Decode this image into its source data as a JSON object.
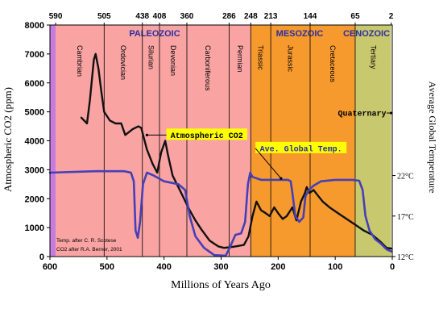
{
  "chart_data": {
    "type": "line",
    "xlabel": "Millions of Years Ago",
    "ylabel_left": "Atmospheric CO2 (ppm)",
    "ylabel_right": "Average Global Temperature",
    "x_reversed": true,
    "xlim": [
      600,
      0
    ],
    "ylim": [
      0,
      8000
    ],
    "x_ticks": [
      "600",
      "500",
      "400",
      "300",
      "200",
      "100",
      "0"
    ],
    "x_tick_values": [
      600,
      500,
      400,
      300,
      200,
      100,
      0
    ],
    "y_ticks": [
      "0",
      "1000",
      "2000",
      "3000",
      "4000",
      "5000",
      "6000",
      "7000",
      "8000"
    ],
    "y_tick_values": [
      0,
      1000,
      2000,
      3000,
      4000,
      5000,
      6000,
      7000,
      8000
    ],
    "right_ticks": [
      {
        "label": "22°C",
        "y": 2800
      },
      {
        "label": "17°C",
        "y": 1400
      },
      {
        "label": "12°C",
        "y": 0
      }
    ],
    "top_ticks": [
      "590",
      "505",
      "438",
      "408",
      "360",
      "286",
      "248",
      "213",
      "144",
      "65",
      "2"
    ],
    "top_tick_values": [
      590,
      505,
      438,
      408,
      360,
      286,
      248,
      213,
      144,
      65,
      2
    ],
    "eras": [
      {
        "name": "PALEOZOIC",
        "start": 590,
        "end": 248,
        "color": "#f9a3a3",
        "text_color": "#2a2fa0"
      },
      {
        "name": "MESOZOIC",
        "start": 248,
        "end": 65,
        "color": "#f79a2e",
        "text_color": "#2a2fa0"
      },
      {
        "name": "CENOZOIC",
        "start": 65,
        "end": 2,
        "color": "#c8c86e",
        "text_color": "#2a2fa0"
      }
    ],
    "pre_band": {
      "start": 600,
      "end": 590,
      "color": "#c77ae0"
    },
    "periods": [
      {
        "name": "Cambrian",
        "start": 590,
        "end": 505
      },
      {
        "name": "Ordovician",
        "start": 505,
        "end": 438
      },
      {
        "name": "Silurian",
        "start": 438,
        "end": 408
      },
      {
        "name": "Devonian",
        "start": 408,
        "end": 360
      },
      {
        "name": "Carboniferous",
        "start": 360,
        "end": 286
      },
      {
        "name": "Permian",
        "start": 286,
        "end": 248
      },
      {
        "name": "Triassic",
        "start": 248,
        "end": 213
      },
      {
        "name": "Jurassic",
        "start": 213,
        "end": 144
      },
      {
        "name": "Cretaceous",
        "start": 144,
        "end": 65
      },
      {
        "name": "Tertiary",
        "start": 65,
        "end": 2
      }
    ],
    "series": [
      {
        "name": "Atmospheric CO2",
        "color": "#111111",
        "points": [
          [
            545,
            4800
          ],
          [
            535,
            4600
          ],
          [
            530,
            5400
          ],
          [
            523,
            6800
          ],
          [
            520,
            7000
          ],
          [
            515,
            6500
          ],
          [
            510,
            5700
          ],
          [
            505,
            5000
          ],
          [
            495,
            4700
          ],
          [
            485,
            4600
          ],
          [
            475,
            4600
          ],
          [
            468,
            4200
          ],
          [
            455,
            4400
          ],
          [
            445,
            4500
          ],
          [
            440,
            4450
          ],
          [
            430,
            3700
          ],
          [
            420,
            3200
          ],
          [
            412,
            2900
          ],
          [
            405,
            3600
          ],
          [
            398,
            4000
          ],
          [
            393,
            3500
          ],
          [
            385,
            2800
          ],
          [
            375,
            2400
          ],
          [
            365,
            2000
          ],
          [
            355,
            1600
          ],
          [
            345,
            1250
          ],
          [
            335,
            950
          ],
          [
            320,
            550
          ],
          [
            305,
            350
          ],
          [
            295,
            300
          ],
          [
            285,
            320
          ],
          [
            275,
            350
          ],
          [
            260,
            400
          ],
          [
            252,
            700
          ],
          [
            245,
            1400
          ],
          [
            238,
            1900
          ],
          [
            230,
            1600
          ],
          [
            222,
            1500
          ],
          [
            215,
            1400
          ],
          [
            207,
            1700
          ],
          [
            200,
            1500
          ],
          [
            192,
            1300
          ],
          [
            185,
            1400
          ],
          [
            175,
            1700
          ],
          [
            168,
            1250
          ],
          [
            160,
            1900
          ],
          [
            153,
            2200
          ],
          [
            150,
            2400
          ],
          [
            145,
            2200
          ],
          [
            138,
            2300
          ],
          [
            130,
            2100
          ],
          [
            122,
            1900
          ],
          [
            110,
            1700
          ],
          [
            95,
            1500
          ],
          [
            80,
            1300
          ],
          [
            65,
            1100
          ],
          [
            50,
            900
          ],
          [
            35,
            750
          ],
          [
            20,
            500
          ],
          [
            10,
            300
          ],
          [
            2,
            280
          ]
        ]
      },
      {
        "name": "Ave. Global Temp.",
        "color": "#4540b8",
        "points": [
          [
            600,
            2900
          ],
          [
            520,
            2950
          ],
          [
            470,
            2950
          ],
          [
            458,
            2900
          ],
          [
            453,
            2600
          ],
          [
            450,
            900
          ],
          [
            446,
            650
          ],
          [
            442,
            1200
          ],
          [
            437,
            2500
          ],
          [
            430,
            2900
          ],
          [
            418,
            2800
          ],
          [
            400,
            2600
          ],
          [
            375,
            2500
          ],
          [
            363,
            2300
          ],
          [
            355,
            1400
          ],
          [
            345,
            700
          ],
          [
            330,
            300
          ],
          [
            312,
            50
          ],
          [
            292,
            30
          ],
          [
            285,
            300
          ],
          [
            275,
            750
          ],
          [
            265,
            800
          ],
          [
            258,
            1200
          ],
          [
            253,
            2500
          ],
          [
            249,
            2900
          ],
          [
            245,
            2750
          ],
          [
            230,
            2650
          ],
          [
            200,
            2650
          ],
          [
            183,
            2650
          ],
          [
            178,
            2600
          ],
          [
            175,
            2200
          ],
          [
            170,
            1400
          ],
          [
            163,
            1200
          ],
          [
            156,
            1350
          ],
          [
            152,
            2100
          ],
          [
            146,
            2300
          ],
          [
            138,
            2450
          ],
          [
            125,
            2600
          ],
          [
            100,
            2650
          ],
          [
            70,
            2650
          ],
          [
            58,
            2620
          ],
          [
            52,
            2300
          ],
          [
            47,
            1400
          ],
          [
            40,
            900
          ],
          [
            30,
            600
          ],
          [
            20,
            450
          ],
          [
            10,
            250
          ],
          [
            2,
            180
          ]
        ]
      }
    ],
    "annotations": [
      {
        "text": "Atmospheric CO2",
        "at": [
          325,
          4200
        ],
        "target": [
          430,
          4200
        ],
        "box_color": "#ffff00",
        "text_color": "#000000"
      },
      {
        "text": "Ave. Global Temp.",
        "at": [
          160,
          3740
        ],
        "target": [
          195,
          2700
        ],
        "box_color": "#ffff00",
        "text_color": "#2a2fa0"
      },
      {
        "text": "Quaternary",
        "at": [
          53,
          4960
        ],
        "target": [
          2,
          4960
        ],
        "box_color": "",
        "text_color": "#000000"
      }
    ],
    "credits": [
      "Temp. after C. R. Scotese",
      "CO2 after R.A. Berner, 2001"
    ]
  }
}
